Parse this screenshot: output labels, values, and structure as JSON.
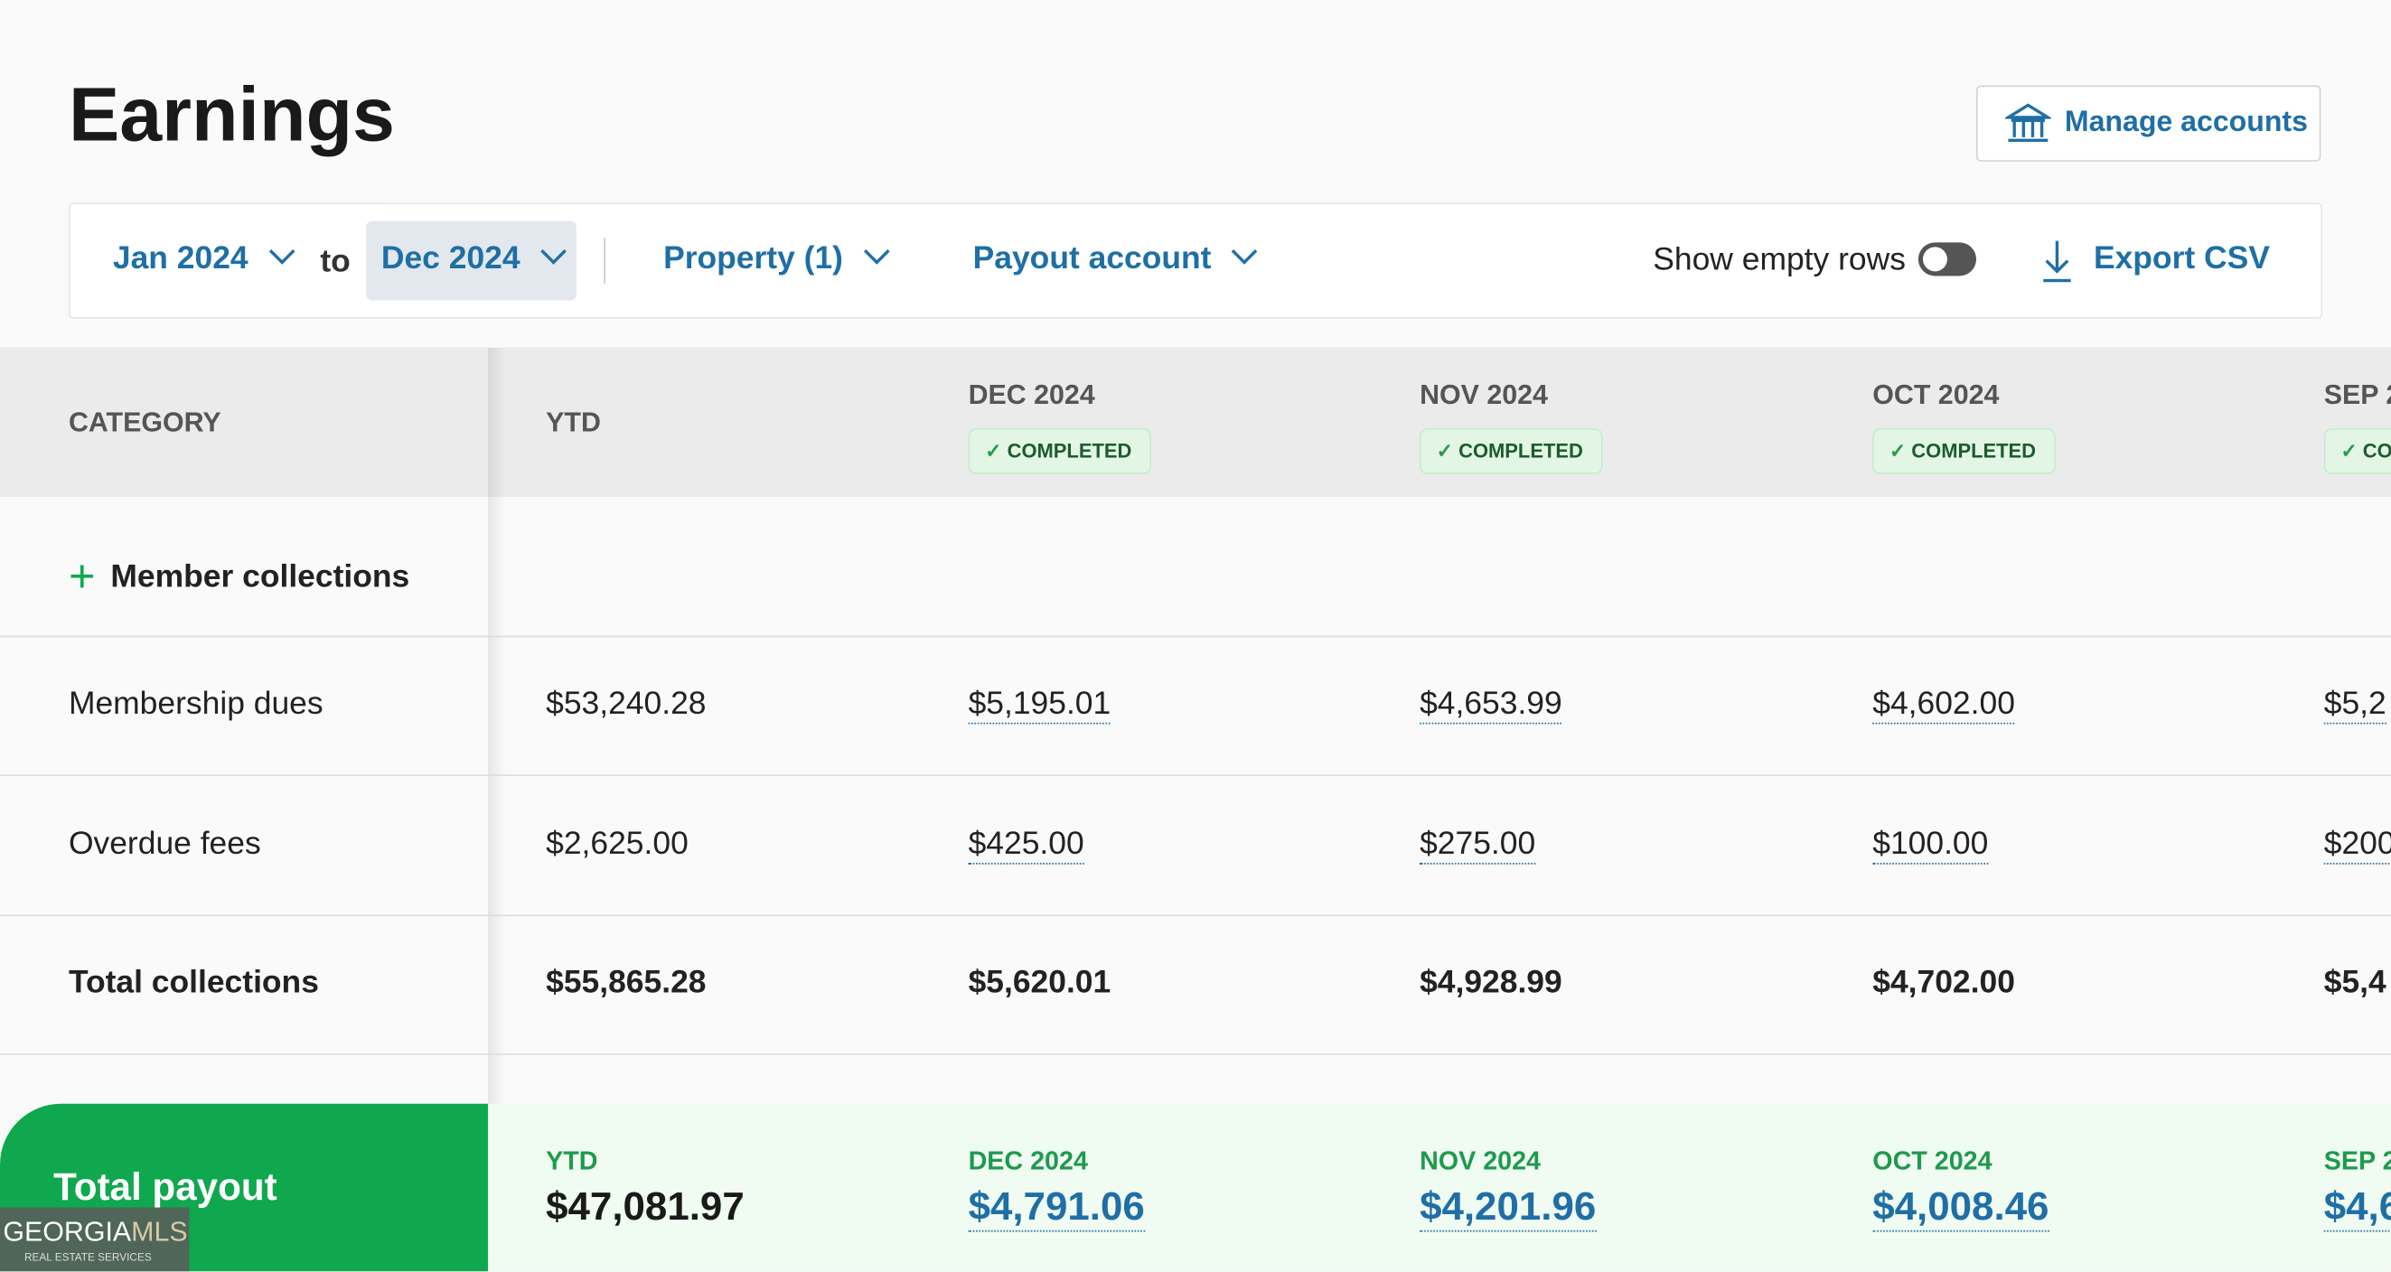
{
  "header": {
    "title": "Earnings",
    "manage_button": "Manage accounts"
  },
  "filters": {
    "from": "Jan 2024",
    "to_word": "to",
    "to": "Dec 2024",
    "property": "Property (1)",
    "payout_account": "Payout account",
    "show_empty_rows": "Show empty rows",
    "export": "Export CSV"
  },
  "table": {
    "header": [
      "CATEGORY",
      "YTD",
      "DEC 2024",
      "NOV 2024",
      "OCT 2024",
      "SEP 2"
    ],
    "status": [
      "COMPLETED",
      "COMPLETED",
      "COMPLETED",
      "CO"
    ],
    "section": "Member collections",
    "rows": [
      [
        "Membership dues",
        "$53,240.28",
        "$5,195.01",
        "$4,653.99",
        "$4,602.00",
        "$5,2"
      ],
      [
        "Overdue fees",
        "$2,625.00",
        "$425.00",
        "$275.00",
        "$100.00",
        "$200"
      ],
      [
        "Total collections",
        "$55,865.28",
        "$5,620.01",
        "$4,928.99",
        "$4,702.00",
        "$5,4"
      ]
    ]
  },
  "payout": {
    "label": "Total payout",
    "columns": [
      [
        "YTD",
        "$47,081.97"
      ],
      [
        "DEC 2024",
        "$4,791.06"
      ],
      [
        "NOV 2024",
        "$4,201.96"
      ],
      [
        "OCT 2024",
        "$4,008.46"
      ],
      [
        "SEP 2",
        "$4,6"
      ]
    ]
  },
  "watermark": {
    "brand": "GEORGIA",
    "brand_suffix": "MLS",
    "tagline": "REAL ESTATE SERVICES"
  }
}
